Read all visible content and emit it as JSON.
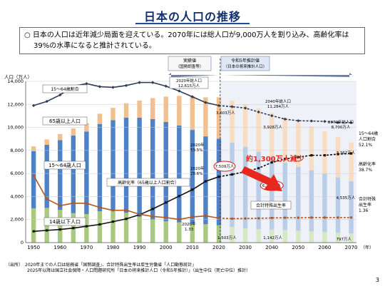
{
  "title": "日本の人口の推移",
  "summary": {
    "bullet": "○",
    "line1": "日本の人口は近年減少局面を迎えている。2070年には総人口が9,000万人を割り込み、高齢化率は",
    "line2": "39%の水準になると推計されている。"
  },
  "chart_data": {
    "type": "bar",
    "ylabel": "人口（万人）",
    "xlabel": "（年）",
    "ylim": [
      0,
      14000
    ],
    "yticks": [
      "0",
      "2,000",
      "4,000",
      "6,000",
      "8,000",
      "10,000",
      "12,000",
      "14,000"
    ],
    "xticks": [
      "1950",
      "1960",
      "1970",
      "1980",
      "1990",
      "2000",
      "2010",
      "2020",
      "2030",
      "2040",
      "2050",
      "2060",
      "2070"
    ],
    "years": [
      1950,
      1955,
      1960,
      1965,
      1970,
      1975,
      1980,
      1985,
      1990,
      1995,
      2000,
      2005,
      2010,
      2015,
      2020,
      2025,
      2030,
      2035,
      2040,
      2045,
      2050,
      2055,
      2060,
      2065,
      2070
    ],
    "series": [
      {
        "name": "14歳以下人口",
        "values": [
          2979,
          3012,
          2843,
          2553,
          2482,
          2722,
          2751,
          2603,
          2249,
          2001,
          1847,
          1752,
          1680,
          1595,
          1503,
          1363,
          1240,
          1169,
          1142,
          1103,
          1041,
          974,
          918,
          848,
          797
        ]
      },
      {
        "name": "15～64歳人口",
        "values": [
          4966,
          5473,
          6047,
          6744,
          7157,
          7581,
          7883,
          8251,
          8590,
          8716,
          8622,
          8409,
          8103,
          7629,
          7509,
          7310,
          7076,
          6722,
          6213,
          5832,
          5540,
          5307,
          5078,
          4809,
          4535
        ]
      },
      {
        "name": "65歳以上人口",
        "values": [
          411,
          475,
          535,
          618,
          733,
          887,
          1065,
          1247,
          1493,
          1828,
          2204,
          2576,
          2925,
          3387,
          3603,
          3653,
          3696,
          3773,
          3928,
          3945,
          3888,
          3813,
          3644,
          3524,
          3367
        ]
      },
      {
        "name": "15～64歳割合",
        "values": [
          59.5,
          61.3,
          64.1,
          67.9,
          69.0,
          67.7,
          67.4,
          68.2,
          69.5,
          69.5,
          67.9,
          65.8,
          63.3,
          60.8,
          59.5,
          59.0,
          58.4,
          56.7,
          55.1,
          53.6,
          52.9,
          52.8,
          52.6,
          52.1,
          52.1
        ]
      },
      {
        "name": "高齢化率（65歳以上人口割合）",
        "values": [
          4.9,
          5.3,
          5.7,
          6.3,
          7.1,
          7.9,
          9.1,
          10.3,
          12.1,
          14.6,
          17.4,
          20.2,
          23.0,
          26.6,
          28.6,
          29.6,
          30.8,
          32.3,
          34.8,
          36.3,
          37.1,
          37.9,
          37.9,
          38.4,
          38.7
        ]
      },
      {
        "name": "合計特殊出生率",
        "values": [
          3.65,
          2.37,
          2.0,
          2.14,
          2.13,
          1.91,
          1.75,
          1.76,
          1.54,
          1.42,
          1.36,
          1.26,
          1.39,
          1.45,
          1.33,
          1.3,
          1.31,
          1.32,
          1.34,
          1.35,
          1.35,
          1.36,
          1.36,
          1.36,
          1.36
        ]
      }
    ],
    "annotations": {
      "header_actual": "実績値",
      "header_actual_sub": "（国勢調査等）",
      "header_proj": "令和5年推計値",
      "header_proj_sub": "（日本の将来推計人口）",
      "peak_2020_label1": "2020年総人口",
      "peak_2020_label2": "12,615万人",
      "total_2040_label1": "2040年総人口",
      "total_2040_label2": "11,284万人",
      "total_2070_label1": "2070年総人口",
      "total_2070_label2": "8,700万人",
      "old_2020": "3,603万人",
      "old_2040": "3,928万人",
      "old_2070": "3,367万人",
      "work_2020": "7,509万人",
      "work_2040": "6,213万人",
      "work_2070": "4,535万人",
      "young_2020": "1,503万人",
      "young_2040": "1,142万人",
      "young_2070": "797万人",
      "work_pct_2020_a": "2020年",
      "work_pct_2020_b": "59.5%",
      "aging_2020_a": "2020年",
      "aging_2020_b": "28.6%",
      "tfr_2020_a": "2020年",
      "tfr_2020_b": "1.33",
      "decrease": "約1,300万人減少",
      "right_work_a": "15～64歳",
      "right_work_b": "人口割合",
      "right_work_c": "52.1%",
      "right_aging_a": "高齢化率",
      "right_aging_b": "38.7%",
      "right_tfr_a": "合計特殊",
      "right_tfr_b": "出生率",
      "right_tfr_c": "1.36",
      "legend_work_pct": "15～64歳割合",
      "legend_old": "65歳以上人口",
      "legend_work": "15～64歳人口",
      "legend_young": "14歳以下人口",
      "legend_aging": "高齢化率（65歳以上人口割合）",
      "legend_tfr": "合計特殊出生率"
    },
    "colors": {
      "young": "#a8c97f",
      "work": "#4f81c7",
      "old": "#f4bf8e",
      "young_proj": "#d7e8c3",
      "work_proj": "#b9cde8",
      "old_proj": "#fadcc0",
      "work_pct_line": "#2f3b58",
      "aging_line": "#111111",
      "tfr_line": "#b5571f",
      "arrow": "#e8281e"
    }
  },
  "footnote": {
    "line1": "（出所）　2020年までの人口は総務省「国勢調査」、合計特殊出生率は厚生労働省「人口動態統計」",
    "line2": "　　　　　2025年以降は国立社会保障・人口問題研究所「日本の将来推計人口（令和5年推計）」（出生中位（死亡中位）推計）"
  },
  "page_number": "3"
}
